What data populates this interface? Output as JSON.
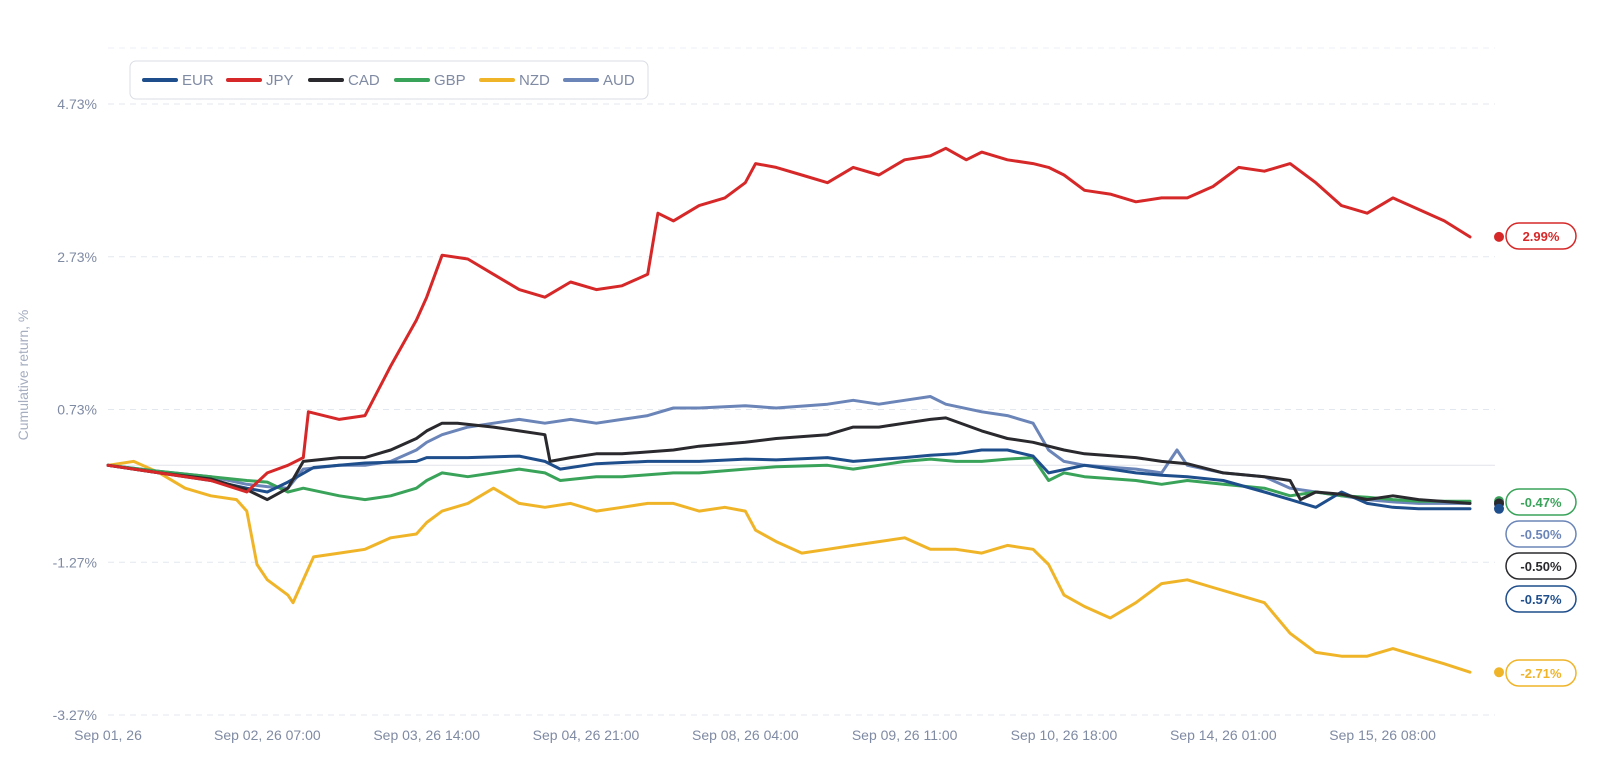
{
  "chart_data": {
    "type": "line",
    "ylabel": "Cumulative return, %",
    "xlabel": "",
    "ylim": [
      -3.27,
      5.4
    ],
    "y_ticks": [
      "4.73%",
      "2.73%",
      "0.73%",
      "-1.27%",
      "-3.27%"
    ],
    "y_tick_values": [
      4.73,
      2.73,
      0.73,
      -1.27,
      -3.27
    ],
    "x_ticks": [
      "Sep 01, 26",
      "Sep 02, 26 07:00",
      "Sep 03, 26 14:00",
      "Sep 04, 26 21:00",
      "Sep 08, 26 04:00",
      "Sep 09, 26 11:00",
      "Sep 10, 26 18:00",
      "Sep 14, 26 01:00",
      "Sep 15, 26 08:00"
    ],
    "x_tick_values": [
      0,
      31,
      62,
      93,
      124,
      155,
      186,
      217,
      248
    ],
    "x_range": [
      0,
      265
    ],
    "grid": true,
    "legend_position": "top-left",
    "series": [
      {
        "name": "EUR",
        "color": "#1f4e8c",
        "end_label": "-0.57%",
        "points": [
          [
            0,
            0
          ],
          [
            10,
            -0.1
          ],
          [
            20,
            -0.2
          ],
          [
            27,
            -0.3
          ],
          [
            31,
            -0.35
          ],
          [
            35,
            -0.22
          ],
          [
            40,
            -0.03
          ],
          [
            50,
            0.03
          ],
          [
            60,
            0.05
          ],
          [
            62,
            0.1
          ],
          [
            70,
            0.1
          ],
          [
            80,
            0.12
          ],
          [
            85,
            0.05
          ],
          [
            88,
            -0.05
          ],
          [
            95,
            0.02
          ],
          [
            105,
            0.05
          ],
          [
            115,
            0.05
          ],
          [
            124,
            0.08
          ],
          [
            130,
            0.07
          ],
          [
            140,
            0.1
          ],
          [
            145,
            0.05
          ],
          [
            155,
            0.1
          ],
          [
            160,
            0.13
          ],
          [
            165,
            0.15
          ],
          [
            170,
            0.2
          ],
          [
            175,
            0.2
          ],
          [
            180,
            0.12
          ],
          [
            183,
            -0.1
          ],
          [
            190,
            0
          ],
          [
            200,
            -0.1
          ],
          [
            205,
            -0.13
          ],
          [
            210,
            -0.15
          ],
          [
            217,
            -0.2
          ],
          [
            225,
            -0.35
          ],
          [
            230,
            -0.45
          ],
          [
            235,
            -0.55
          ],
          [
            240,
            -0.35
          ],
          [
            245,
            -0.5
          ],
          [
            250,
            -0.55
          ],
          [
            255,
            -0.57
          ],
          [
            265,
            -0.57
          ]
        ]
      },
      {
        "name": "JPY",
        "color": "#d62828",
        "end_label": "2.99%",
        "points": [
          [
            0,
            0
          ],
          [
            10,
            -0.1
          ],
          [
            20,
            -0.2
          ],
          [
            27,
            -0.35
          ],
          [
            31,
            -0.1
          ],
          [
            35,
            0
          ],
          [
            38,
            0.1
          ],
          [
            39,
            0.7
          ],
          [
            45,
            0.6
          ],
          [
            50,
            0.65
          ],
          [
            55,
            1.3
          ],
          [
            60,
            1.9
          ],
          [
            62,
            2.2
          ],
          [
            65,
            2.75
          ],
          [
            70,
            2.7
          ],
          [
            75,
            2.5
          ],
          [
            80,
            2.3
          ],
          [
            85,
            2.2
          ],
          [
            90,
            2.4
          ],
          [
            95,
            2.3
          ],
          [
            100,
            2.35
          ],
          [
            105,
            2.5
          ],
          [
            107,
            3.3
          ],
          [
            110,
            3.2
          ],
          [
            115,
            3.4
          ],
          [
            120,
            3.5
          ],
          [
            124,
            3.7
          ],
          [
            126,
            3.95
          ],
          [
            130,
            3.9
          ],
          [
            135,
            3.8
          ],
          [
            140,
            3.7
          ],
          [
            145,
            3.9
          ],
          [
            150,
            3.8
          ],
          [
            155,
            4.0
          ],
          [
            160,
            4.05
          ],
          [
            163,
            4.15
          ],
          [
            167,
            4.0
          ],
          [
            170,
            4.1
          ],
          [
            175,
            4.0
          ],
          [
            180,
            3.95
          ],
          [
            183,
            3.9
          ],
          [
            186,
            3.8
          ],
          [
            190,
            3.6
          ],
          [
            195,
            3.55
          ],
          [
            200,
            3.45
          ],
          [
            205,
            3.5
          ],
          [
            210,
            3.5
          ],
          [
            215,
            3.65
          ],
          [
            220,
            3.9
          ],
          [
            225,
            3.85
          ],
          [
            230,
            3.95
          ],
          [
            235,
            3.7
          ],
          [
            240,
            3.4
          ],
          [
            245,
            3.3
          ],
          [
            250,
            3.5
          ],
          [
            255,
            3.35
          ],
          [
            260,
            3.2
          ],
          [
            265,
            2.99
          ]
        ]
      },
      {
        "name": "CAD",
        "color": "#2a2a2e",
        "end_label": "-0.50%",
        "points": [
          [
            0,
            0
          ],
          [
            10,
            -0.1
          ],
          [
            20,
            -0.18
          ],
          [
            27,
            -0.32
          ],
          [
            31,
            -0.45
          ],
          [
            35,
            -0.3
          ],
          [
            38,
            0.05
          ],
          [
            45,
            0.1
          ],
          [
            50,
            0.1
          ],
          [
            55,
            0.2
          ],
          [
            60,
            0.35
          ],
          [
            62,
            0.45
          ],
          [
            65,
            0.55
          ],
          [
            68,
            0.55
          ],
          [
            75,
            0.5
          ],
          [
            80,
            0.45
          ],
          [
            85,
            0.4
          ],
          [
            86,
            0.05
          ],
          [
            90,
            0.1
          ],
          [
            95,
            0.15
          ],
          [
            100,
            0.15
          ],
          [
            110,
            0.2
          ],
          [
            115,
            0.25
          ],
          [
            124,
            0.3
          ],
          [
            130,
            0.35
          ],
          [
            140,
            0.4
          ],
          [
            145,
            0.5
          ],
          [
            150,
            0.5
          ],
          [
            155,
            0.55
          ],
          [
            160,
            0.6
          ],
          [
            163,
            0.62
          ],
          [
            170,
            0.45
          ],
          [
            175,
            0.35
          ],
          [
            180,
            0.3
          ],
          [
            186,
            0.2
          ],
          [
            190,
            0.15
          ],
          [
            200,
            0.1
          ],
          [
            205,
            0.05
          ],
          [
            210,
            0.02
          ],
          [
            217,
            -0.1
          ],
          [
            225,
            -0.15
          ],
          [
            230,
            -0.2
          ],
          [
            232,
            -0.45
          ],
          [
            235,
            -0.35
          ],
          [
            240,
            -0.38
          ],
          [
            245,
            -0.45
          ],
          [
            250,
            -0.4
          ],
          [
            255,
            -0.45
          ],
          [
            265,
            -0.5
          ]
        ]
      },
      {
        "name": "GBP",
        "color": "#3aa35a",
        "end_label": "-0.47%",
        "points": [
          [
            0,
            0
          ],
          [
            10,
            -0.08
          ],
          [
            20,
            -0.15
          ],
          [
            27,
            -0.2
          ],
          [
            31,
            -0.22
          ],
          [
            35,
            -0.35
          ],
          [
            38,
            -0.3
          ],
          [
            45,
            -0.4
          ],
          [
            50,
            -0.45
          ],
          [
            55,
            -0.4
          ],
          [
            60,
            -0.3
          ],
          [
            62,
            -0.2
          ],
          [
            65,
            -0.1
          ],
          [
            70,
            -0.15
          ],
          [
            75,
            -0.1
          ],
          [
            80,
            -0.05
          ],
          [
            85,
            -0.1
          ],
          [
            88,
            -0.2
          ],
          [
            95,
            -0.15
          ],
          [
            100,
            -0.15
          ],
          [
            110,
            -0.1
          ],
          [
            115,
            -0.1
          ],
          [
            124,
            -0.05
          ],
          [
            130,
            -0.02
          ],
          [
            140,
            0
          ],
          [
            145,
            -0.05
          ],
          [
            150,
            0.0
          ],
          [
            155,
            0.05
          ],
          [
            160,
            0.08
          ],
          [
            165,
            0.05
          ],
          [
            170,
            0.05
          ],
          [
            175,
            0.08
          ],
          [
            180,
            0.1
          ],
          [
            183,
            -0.2
          ],
          [
            186,
            -0.1
          ],
          [
            190,
            -0.15
          ],
          [
            200,
            -0.2
          ],
          [
            205,
            -0.25
          ],
          [
            210,
            -0.2
          ],
          [
            217,
            -0.25
          ],
          [
            225,
            -0.3
          ],
          [
            230,
            -0.4
          ],
          [
            235,
            -0.35
          ],
          [
            240,
            -0.4
          ],
          [
            245,
            -0.42
          ],
          [
            250,
            -0.45
          ],
          [
            255,
            -0.47
          ],
          [
            265,
            -0.47
          ]
        ]
      },
      {
        "name": "NZD",
        "color": "#f0b429",
        "end_label": "-2.71%",
        "points": [
          [
            0,
            0
          ],
          [
            5,
            0.05
          ],
          [
            10,
            -0.1
          ],
          [
            15,
            -0.3
          ],
          [
            20,
            -0.4
          ],
          [
            25,
            -0.45
          ],
          [
            27,
            -0.6
          ],
          [
            29,
            -1.3
          ],
          [
            31,
            -1.5
          ],
          [
            35,
            -1.7
          ],
          [
            36,
            -1.8
          ],
          [
            38,
            -1.5
          ],
          [
            40,
            -1.2
          ],
          [
            45,
            -1.15
          ],
          [
            50,
            -1.1
          ],
          [
            55,
            -0.95
          ],
          [
            60,
            -0.9
          ],
          [
            62,
            -0.75
          ],
          [
            65,
            -0.6
          ],
          [
            70,
            -0.5
          ],
          [
            75,
            -0.3
          ],
          [
            80,
            -0.5
          ],
          [
            85,
            -0.55
          ],
          [
            90,
            -0.5
          ],
          [
            95,
            -0.6
          ],
          [
            100,
            -0.55
          ],
          [
            105,
            -0.5
          ],
          [
            110,
            -0.5
          ],
          [
            115,
            -0.6
          ],
          [
            120,
            -0.55
          ],
          [
            124,
            -0.6
          ],
          [
            126,
            -0.85
          ],
          [
            130,
            -1.0
          ],
          [
            135,
            -1.15
          ],
          [
            140,
            -1.1
          ],
          [
            145,
            -1.05
          ],
          [
            150,
            -1.0
          ],
          [
            155,
            -0.95
          ],
          [
            160,
            -1.1
          ],
          [
            165,
            -1.1
          ],
          [
            170,
            -1.15
          ],
          [
            175,
            -1.05
          ],
          [
            180,
            -1.1
          ],
          [
            183,
            -1.3
          ],
          [
            186,
            -1.7
          ],
          [
            190,
            -1.85
          ],
          [
            195,
            -2.0
          ],
          [
            200,
            -1.8
          ],
          [
            205,
            -1.55
          ],
          [
            210,
            -1.5
          ],
          [
            215,
            -1.6
          ],
          [
            220,
            -1.7
          ],
          [
            225,
            -1.8
          ],
          [
            230,
            -2.2
          ],
          [
            235,
            -2.45
          ],
          [
            240,
            -2.5
          ],
          [
            245,
            -2.5
          ],
          [
            250,
            -2.4
          ],
          [
            255,
            -2.5
          ],
          [
            260,
            -2.6
          ],
          [
            265,
            -2.71
          ]
        ]
      },
      {
        "name": "AUD",
        "color": "#6b85b8",
        "end_label": "-0.50%",
        "points": [
          [
            0,
            0
          ],
          [
            10,
            -0.08
          ],
          [
            20,
            -0.15
          ],
          [
            27,
            -0.25
          ],
          [
            31,
            -0.28
          ],
          [
            35,
            -0.3
          ],
          [
            38,
            -0.05
          ],
          [
            45,
            0
          ],
          [
            50,
            0
          ],
          [
            55,
            0.05
          ],
          [
            60,
            0.2
          ],
          [
            62,
            0.3
          ],
          [
            65,
            0.4
          ],
          [
            70,
            0.5
          ],
          [
            75,
            0.55
          ],
          [
            80,
            0.6
          ],
          [
            85,
            0.55
          ],
          [
            90,
            0.6
          ],
          [
            95,
            0.55
          ],
          [
            100,
            0.6
          ],
          [
            105,
            0.65
          ],
          [
            110,
            0.75
          ],
          [
            115,
            0.75
          ],
          [
            124,
            0.78
          ],
          [
            130,
            0.75
          ],
          [
            140,
            0.8
          ],
          [
            145,
            0.85
          ],
          [
            150,
            0.8
          ],
          [
            155,
            0.85
          ],
          [
            160,
            0.9
          ],
          [
            163,
            0.8
          ],
          [
            170,
            0.7
          ],
          [
            175,
            0.65
          ],
          [
            180,
            0.55
          ],
          [
            183,
            0.2
          ],
          [
            186,
            0.05
          ],
          [
            190,
            0
          ],
          [
            200,
            -0.05
          ],
          [
            205,
            -0.1
          ],
          [
            208,
            0.2
          ],
          [
            210,
            0
          ],
          [
            217,
            -0.1
          ],
          [
            225,
            -0.15
          ],
          [
            230,
            -0.3
          ],
          [
            235,
            -0.35
          ],
          [
            240,
            -0.4
          ],
          [
            245,
            -0.45
          ],
          [
            250,
            -0.48
          ],
          [
            255,
            -0.5
          ],
          [
            265,
            -0.5
          ]
        ]
      }
    ]
  }
}
